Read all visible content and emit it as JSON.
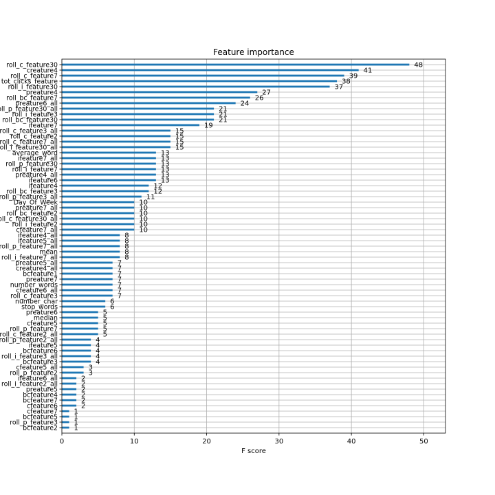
{
  "chart_data": {
    "type": "bar",
    "orientation": "horizontal",
    "title": "Feature importance",
    "xlabel": "F score",
    "ylabel": "",
    "xlim": [
      0,
      53
    ],
    "xticks": [
      0,
      10,
      20,
      30,
      40,
      50
    ],
    "grid": true,
    "bar_color": "#1f77b4",
    "categories": [
      "roll_c_feature30",
      "creature4",
      "roll_c_feature7",
      "tot_clicks_feature",
      "roll_i_feature30",
      "preature4",
      "roll_bc_feature7",
      "preature6_all",
      "roll_p_feature30_all",
      "roll_i_feature3",
      "roll_bc_feature30",
      "ifeature7",
      "roll_c_feature3_all",
      "roll_c_feature2",
      "roll_c_feature7_all",
      "roll_i_feature30_all",
      "average_word",
      "ifeature7_all",
      "roll_p_feature30",
      "roll_i_feature7",
      "preature4_all",
      "ifeature6",
      "ifeature4",
      "roll_bc_feature3",
      "roll_p_feature3_all",
      "Day_Of_Week",
      "preature7_all",
      "roll_bc_feature2",
      "roll_c_feature30_all",
      "roll_i_feature2",
      "cfeature7_all",
      "ifeature4_all",
      "ifeature5_all",
      "roll_p_feature7_all",
      "mean",
      "roll_i_feature7_all",
      "preature5_all",
      "creature4_all",
      "bcfeature1",
      "preature7",
      "number_words",
      "cfeature6_all",
      "roll_c_feature3",
      "number_char",
      "stop_words",
      "preature6",
      "median",
      "cfeature5",
      "roll_p_feature7",
      "roll_c_feature2_all",
      "roll_p_feature2_all",
      "ifeature5",
      "bcfeature6",
      "roll_i_feature3_all",
      "bcfeature3",
      "cfeature5_all",
      "roll_p_feature2",
      "ifeature6_all",
      "roll_i_feature2_all",
      "preature5",
      "bcfeature4",
      "bcfeature7",
      "cfeature6",
      "cfeature7",
      "bcfeature5",
      "roll_p_feature3",
      "bcfeature2"
    ],
    "values": [
      48,
      41,
      39,
      38,
      37,
      27,
      26,
      24,
      21,
      21,
      21,
      19,
      15,
      15,
      15,
      15,
      13,
      13,
      13,
      13,
      13,
      13,
      12,
      12,
      11,
      10,
      10,
      10,
      10,
      10,
      10,
      8,
      8,
      8,
      8,
      8,
      7,
      7,
      7,
      7,
      7,
      7,
      7,
      6,
      6,
      5,
      5,
      5,
      5,
      5,
      4,
      4,
      4,
      4,
      4,
      3,
      3,
      2,
      2,
      2,
      2,
      2,
      2,
      1,
      1,
      1,
      1
    ]
  }
}
